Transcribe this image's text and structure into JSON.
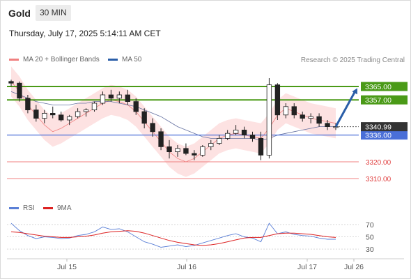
{
  "header": {
    "symbol": "Gold",
    "timeframe": "30 MIN",
    "datetime": "Thursday, July 17, 2025 5:14:11 AM CET",
    "credit": "Research © 2025 Trading Central"
  },
  "legend": {
    "bollinger": "MA 20 + Bollinger Bands",
    "ma50": "MA 50",
    "rsi": "RSI",
    "rsi_ma": "9MA"
  },
  "colors": {
    "resistance": "#4a9a17",
    "support": "#4a6fd8",
    "support_weak": "#f08080",
    "candle": "#222222",
    "bollinger_fill": "#fde2e2",
    "ma20": "#f08080",
    "ma50": "#6470a0",
    "arrow": "#2a5ea8",
    "rsi": "#5a7fd6",
    "rsi_ma": "#dd2222"
  },
  "chart_data": {
    "type": "candlestick",
    "x_ticks": [
      "Jul 15",
      "Jul 16",
      "Jul 17",
      "Jul 26"
    ],
    "ylim": [
      3300,
      3375
    ],
    "last_price": "3340.99",
    "levels": [
      {
        "label": "3365.00",
        "value": 3365,
        "kind": "resistance"
      },
      {
        "label": "3357.00",
        "value": 3357,
        "kind": "resistance"
      },
      {
        "label": "3336.00",
        "value": 3336,
        "kind": "support"
      },
      {
        "label": "3320.00",
        "value": 3320,
        "kind": "support_weak"
      },
      {
        "label": "3310.00",
        "value": 3310,
        "kind": "support_weak"
      }
    ],
    "arrow": {
      "from": 3341,
      "to": 3364
    },
    "series": [
      {
        "name": "MA 20 + Bollinger Bands",
        "values": [
          3368,
          3362,
          3354,
          3348,
          3342,
          3338,
          3340,
          3343,
          3346,
          3349,
          3352,
          3355,
          3357,
          3356,
          3354,
          3350,
          3344,
          3338,
          3332,
          3326,
          3322,
          3320,
          3322,
          3326,
          3330,
          3334,
          3336,
          3337,
          3336,
          3335,
          3334,
          3340,
          3348,
          3352,
          3350,
          3348,
          3346,
          3345,
          3344,
          3343
        ]
      },
      {
        "name": "MA 50",
        "values": [
          3362,
          3360,
          3358,
          3356,
          3355,
          3354,
          3354,
          3354,
          3355,
          3355,
          3356,
          3356,
          3356,
          3355,
          3354,
          3353,
          3351,
          3349,
          3347,
          3344,
          3341,
          3339,
          3337,
          3335,
          3334,
          3334,
          3334,
          3334,
          3334,
          3334,
          3333,
          3334,
          3336,
          3337,
          3338,
          3339,
          3340,
          3341,
          3341,
          3341
        ]
      }
    ],
    "candles": [
      [
        3368,
        3369,
        3365,
        3367
      ],
      [
        3367,
        3368,
        3356,
        3358
      ],
      [
        3358,
        3360,
        3349,
        3351
      ],
      [
        3351,
        3354,
        3344,
        3346
      ],
      [
        3346,
        3351,
        3343,
        3349
      ],
      [
        3349,
        3353,
        3346,
        3348
      ],
      [
        3348,
        3350,
        3344,
        3345
      ],
      [
        3345,
        3348,
        3342,
        3347
      ],
      [
        3347,
        3352,
        3346,
        3350
      ],
      [
        3350,
        3352,
        3347,
        3351
      ],
      [
        3351,
        3356,
        3350,
        3355
      ],
      [
        3355,
        3362,
        3354,
        3360
      ],
      [
        3360,
        3363,
        3356,
        3358
      ],
      [
        3358,
        3362,
        3355,
        3360
      ],
      [
        3360,
        3363,
        3354,
        3356
      ],
      [
        3356,
        3358,
        3348,
        3350
      ],
      [
        3350,
        3352,
        3340,
        3343
      ],
      [
        3343,
        3346,
        3335,
        3338
      ],
      [
        3338,
        3340,
        3327,
        3329
      ],
      [
        3329,
        3333,
        3322,
        3326
      ],
      [
        3326,
        3330,
        3323,
        3328
      ],
      [
        3328,
        3331,
        3324,
        3325
      ],
      [
        3325,
        3327,
        3321,
        3324
      ],
      [
        3324,
        3330,
        3323,
        3329
      ],
      [
        3329,
        3333,
        3327,
        3331
      ],
      [
        3331,
        3336,
        3330,
        3334
      ],
      [
        3334,
        3339,
        3333,
        3337
      ],
      [
        3337,
        3342,
        3336,
        3339
      ],
      [
        3339,
        3341,
        3334,
        3336
      ],
      [
        3336,
        3338,
        3332,
        3334
      ],
      [
        3334,
        3338,
        3321,
        3324
      ],
      [
        3324,
        3370,
        3322,
        3366
      ],
      [
        3366,
        3367,
        3345,
        3348
      ],
      [
        3348,
        3355,
        3346,
        3353
      ],
      [
        3353,
        3355,
        3346,
        3348
      ],
      [
        3348,
        3350,
        3344,
        3346
      ],
      [
        3346,
        3349,
        3343,
        3347
      ],
      [
        3347,
        3349,
        3341,
        3343
      ],
      [
        3343,
        3345,
        3339,
        3341
      ],
      [
        3341,
        3343,
        3339,
        3341
      ]
    ],
    "rsi": {
      "ylim": [
        20,
        80
      ],
      "ticks": [
        "70",
        "50",
        "30"
      ],
      "series": [
        {
          "name": "RSI",
          "values": [
            72,
            60,
            52,
            47,
            50,
            49,
            47,
            48,
            52,
            54,
            58,
            66,
            62,
            63,
            58,
            50,
            42,
            38,
            33,
            35,
            37,
            34,
            36,
            40,
            44,
            48,
            52,
            55,
            50,
            48,
            42,
            72,
            55,
            58,
            54,
            52,
            51,
            48,
            46,
            46
          ]
        },
        {
          "name": "9MA",
          "values": [
            58,
            57,
            55,
            53,
            51,
            50,
            49,
            49,
            50,
            51,
            53,
            56,
            58,
            59,
            60,
            59,
            56,
            52,
            48,
            44,
            41,
            39,
            37,
            36,
            37,
            39,
            42,
            45,
            48,
            49,
            49,
            52,
            55,
            56,
            56,
            55,
            54,
            52,
            50,
            49
          ]
        }
      ]
    }
  }
}
